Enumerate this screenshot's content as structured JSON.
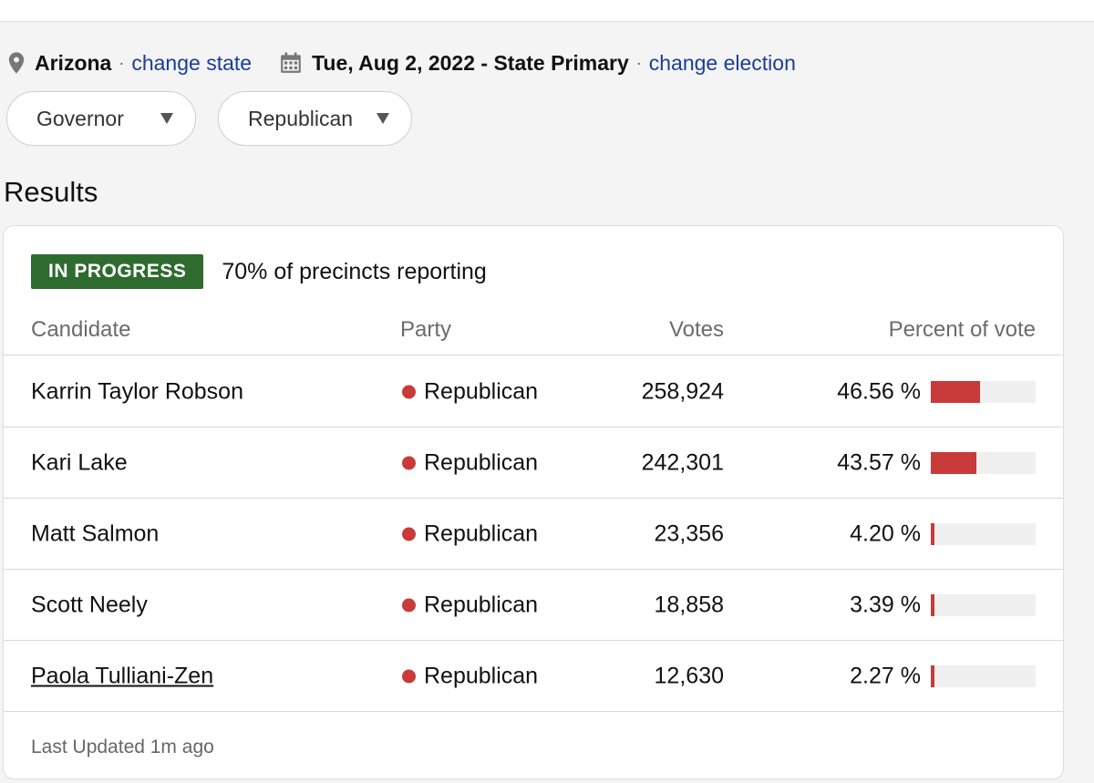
{
  "location": {
    "state": "Arizona",
    "change_state_label": "change state",
    "election": "Tue, Aug 2, 2022 - State Primary",
    "change_election_label": "change election",
    "separator": "·"
  },
  "filters": {
    "office": "Governor",
    "party": "Republican"
  },
  "results": {
    "title": "Results",
    "status_badge": "IN PROGRESS",
    "reporting": "70% of precincts reporting",
    "columns": {
      "candidate": "Candidate",
      "party": "Party",
      "votes": "Votes",
      "percent": "Percent of vote"
    },
    "rows": [
      {
        "name": "Karrin Taylor Robson",
        "party": "Republican",
        "votes": "258,924",
        "percent": "46.56 %",
        "share": 46.56
      },
      {
        "name": "Kari Lake",
        "party": "Republican",
        "votes": "242,301",
        "percent": "43.57 %",
        "share": 43.57
      },
      {
        "name": "Matt Salmon",
        "party": "Republican",
        "votes": "23,356",
        "percent": "4.20 %",
        "share": 4.2
      },
      {
        "name": "Scott Neely",
        "party": "Republican",
        "votes": "18,858",
        "percent": "3.39 %",
        "share": 3.39
      },
      {
        "name": "Paola Tulliani-Zen",
        "party": "Republican",
        "votes": "12,630",
        "percent": "2.27 %",
        "share": 2.27
      }
    ],
    "last_updated": "Last Updated 1m ago"
  },
  "colors": {
    "badge": "#2e6b2f",
    "party_republican": "#c93a3a",
    "link": "#1a3d9a"
  },
  "icons": [
    "location-pin-icon",
    "calendar-icon",
    "caret-down-icon"
  ]
}
